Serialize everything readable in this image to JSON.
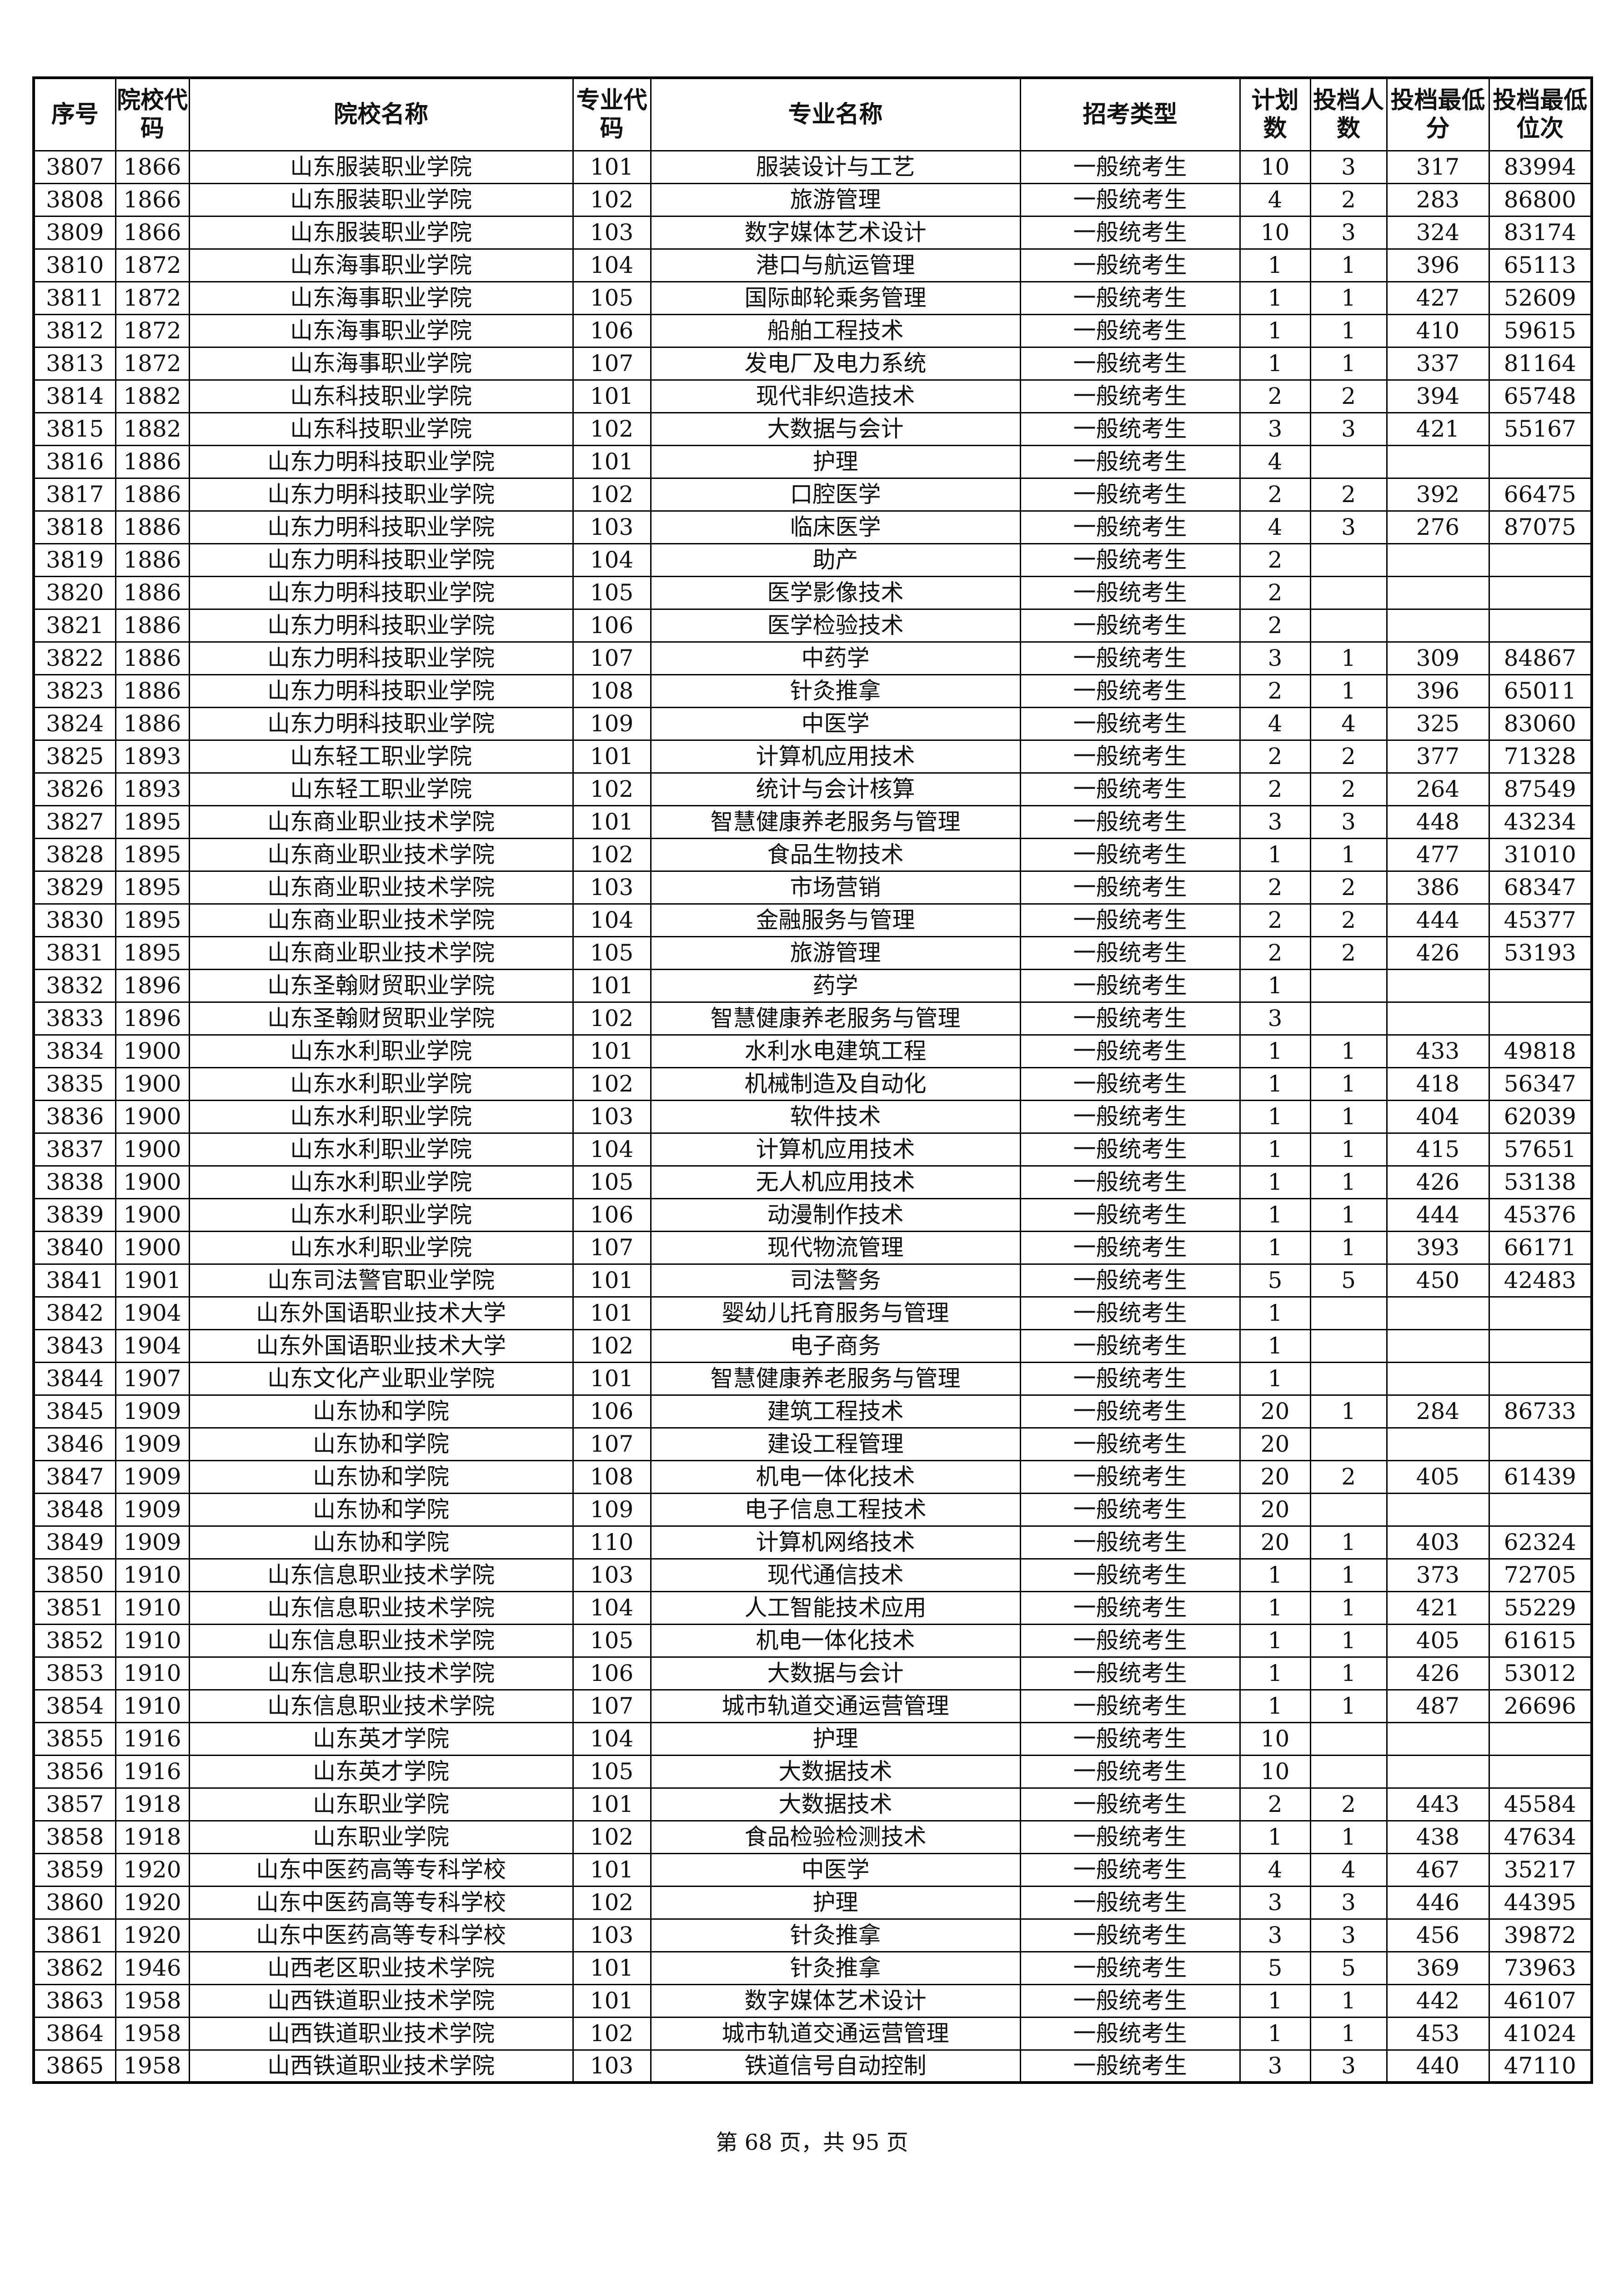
{
  "headers": [
    "序号",
    "院校代码",
    "院校名称",
    "专业代码",
    "专业名称",
    "招考类型",
    "计划数",
    "投档人数",
    "投档最低分",
    "投档最低位次"
  ],
  "rows": [
    [
      "3807",
      "1866",
      "山东服装职业学院",
      "101",
      "服装设计与工艺",
      "一般统考生",
      "10",
      "3",
      "317",
      "83994"
    ],
    [
      "3808",
      "1866",
      "山东服装职业学院",
      "102",
      "旅游管理",
      "一般统考生",
      "4",
      "2",
      "283",
      "86800"
    ],
    [
      "3809",
      "1866",
      "山东服装职业学院",
      "103",
      "数字媒体艺术设计",
      "一般统考生",
      "10",
      "3",
      "324",
      "83174"
    ],
    [
      "3810",
      "1872",
      "山东海事职业学院",
      "104",
      "港口与航运管理",
      "一般统考生",
      "1",
      "1",
      "396",
      "65113"
    ],
    [
      "3811",
      "1872",
      "山东海事职业学院",
      "105",
      "国际邮轮乘务管理",
      "一般统考生",
      "1",
      "1",
      "427",
      "52609"
    ],
    [
      "3812",
      "1872",
      "山东海事职业学院",
      "106",
      "船舶工程技术",
      "一般统考生",
      "1",
      "1",
      "410",
      "59615"
    ],
    [
      "3813",
      "1872",
      "山东海事职业学院",
      "107",
      "发电厂及电力系统",
      "一般统考生",
      "1",
      "1",
      "337",
      "81164"
    ],
    [
      "3814",
      "1882",
      "山东科技职业学院",
      "101",
      "现代非织造技术",
      "一般统考生",
      "2",
      "2",
      "394",
      "65748"
    ],
    [
      "3815",
      "1882",
      "山东科技职业学院",
      "102",
      "大数据与会计",
      "一般统考生",
      "3",
      "3",
      "421",
      "55167"
    ],
    [
      "3816",
      "1886",
      "山东力明科技职业学院",
      "101",
      "护理",
      "一般统考生",
      "4",
      "",
      "",
      ""
    ],
    [
      "3817",
      "1886",
      "山东力明科技职业学院",
      "102",
      "口腔医学",
      "一般统考生",
      "2",
      "2",
      "392",
      "66475"
    ],
    [
      "3818",
      "1886",
      "山东力明科技职业学院",
      "103",
      "临床医学",
      "一般统考生",
      "4",
      "3",
      "276",
      "87075"
    ],
    [
      "3819",
      "1886",
      "山东力明科技职业学院",
      "104",
      "助产",
      "一般统考生",
      "2",
      "",
      "",
      ""
    ],
    [
      "3820",
      "1886",
      "山东力明科技职业学院",
      "105",
      "医学影像技术",
      "一般统考生",
      "2",
      "",
      "",
      ""
    ],
    [
      "3821",
      "1886",
      "山东力明科技职业学院",
      "106",
      "医学检验技术",
      "一般统考生",
      "2",
      "",
      "",
      ""
    ],
    [
      "3822",
      "1886",
      "山东力明科技职业学院",
      "107",
      "中药学",
      "一般统考生",
      "3",
      "1",
      "309",
      "84867"
    ],
    [
      "3823",
      "1886",
      "山东力明科技职业学院",
      "108",
      "针灸推拿",
      "一般统考生",
      "2",
      "1",
      "396",
      "65011"
    ],
    [
      "3824",
      "1886",
      "山东力明科技职业学院",
      "109",
      "中医学",
      "一般统考生",
      "4",
      "4",
      "325",
      "83060"
    ],
    [
      "3825",
      "1893",
      "山东轻工职业学院",
      "101",
      "计算机应用技术",
      "一般统考生",
      "2",
      "2",
      "377",
      "71328"
    ],
    [
      "3826",
      "1893",
      "山东轻工职业学院",
      "102",
      "统计与会计核算",
      "一般统考生",
      "2",
      "2",
      "264",
      "87549"
    ],
    [
      "3827",
      "1895",
      "山东商业职业技术学院",
      "101",
      "智慧健康养老服务与管理",
      "一般统考生",
      "3",
      "3",
      "448",
      "43234"
    ],
    [
      "3828",
      "1895",
      "山东商业职业技术学院",
      "102",
      "食品生物技术",
      "一般统考生",
      "1",
      "1",
      "477",
      "31010"
    ],
    [
      "3829",
      "1895",
      "山东商业职业技术学院",
      "103",
      "市场营销",
      "一般统考生",
      "2",
      "2",
      "386",
      "68347"
    ],
    [
      "3830",
      "1895",
      "山东商业职业技术学院",
      "104",
      "金融服务与管理",
      "一般统考生",
      "2",
      "2",
      "444",
      "45377"
    ],
    [
      "3831",
      "1895",
      "山东商业职业技术学院",
      "105",
      "旅游管理",
      "一般统考生",
      "2",
      "2",
      "426",
      "53193"
    ],
    [
      "3832",
      "1896",
      "山东圣翰财贸职业学院",
      "101",
      "药学",
      "一般统考生",
      "1",
      "",
      "",
      ""
    ],
    [
      "3833",
      "1896",
      "山东圣翰财贸职业学院",
      "102",
      "智慧健康养老服务与管理",
      "一般统考生",
      "3",
      "",
      "",
      ""
    ],
    [
      "3834",
      "1900",
      "山东水利职业学院",
      "101",
      "水利水电建筑工程",
      "一般统考生",
      "1",
      "1",
      "433",
      "49818"
    ],
    [
      "3835",
      "1900",
      "山东水利职业学院",
      "102",
      "机械制造及自动化",
      "一般统考生",
      "1",
      "1",
      "418",
      "56347"
    ],
    [
      "3836",
      "1900",
      "山东水利职业学院",
      "103",
      "软件技术",
      "一般统考生",
      "1",
      "1",
      "404",
      "62039"
    ],
    [
      "3837",
      "1900",
      "山东水利职业学院",
      "104",
      "计算机应用技术",
      "一般统考生",
      "1",
      "1",
      "415",
      "57651"
    ],
    [
      "3838",
      "1900",
      "山东水利职业学院",
      "105",
      "无人机应用技术",
      "一般统考生",
      "1",
      "1",
      "426",
      "53138"
    ],
    [
      "3839",
      "1900",
      "山东水利职业学院",
      "106",
      "动漫制作技术",
      "一般统考生",
      "1",
      "1",
      "444",
      "45376"
    ],
    [
      "3840",
      "1900",
      "山东水利职业学院",
      "107",
      "现代物流管理",
      "一般统考生",
      "1",
      "1",
      "393",
      "66171"
    ],
    [
      "3841",
      "1901",
      "山东司法警官职业学院",
      "101",
      "司法警务",
      "一般统考生",
      "5",
      "5",
      "450",
      "42483"
    ],
    [
      "3842",
      "1904",
      "山东外国语职业技术大学",
      "101",
      "婴幼儿托育服务与管理",
      "一般统考生",
      "1",
      "",
      "",
      ""
    ],
    [
      "3843",
      "1904",
      "山东外国语职业技术大学",
      "102",
      "电子商务",
      "一般统考生",
      "1",
      "",
      "",
      ""
    ],
    [
      "3844",
      "1907",
      "山东文化产业职业学院",
      "101",
      "智慧健康养老服务与管理",
      "一般统考生",
      "1",
      "",
      "",
      ""
    ],
    [
      "3845",
      "1909",
      "山东协和学院",
      "106",
      "建筑工程技术",
      "一般统考生",
      "20",
      "1",
      "284",
      "86733"
    ],
    [
      "3846",
      "1909",
      "山东协和学院",
      "107",
      "建设工程管理",
      "一般统考生",
      "20",
      "",
      "",
      ""
    ],
    [
      "3847",
      "1909",
      "山东协和学院",
      "108",
      "机电一体化技术",
      "一般统考生",
      "20",
      "2",
      "405",
      "61439"
    ],
    [
      "3848",
      "1909",
      "山东协和学院",
      "109",
      "电子信息工程技术",
      "一般统考生",
      "20",
      "",
      "",
      ""
    ],
    [
      "3849",
      "1909",
      "山东协和学院",
      "110",
      "计算机网络技术",
      "一般统考生",
      "20",
      "1",
      "403",
      "62324"
    ],
    [
      "3850",
      "1910",
      "山东信息职业技术学院",
      "103",
      "现代通信技术",
      "一般统考生",
      "1",
      "1",
      "373",
      "72705"
    ],
    [
      "3851",
      "1910",
      "山东信息职业技术学院",
      "104",
      "人工智能技术应用",
      "一般统考生",
      "1",
      "1",
      "421",
      "55229"
    ],
    [
      "3852",
      "1910",
      "山东信息职业技术学院",
      "105",
      "机电一体化技术",
      "一般统考生",
      "1",
      "1",
      "405",
      "61615"
    ],
    [
      "3853",
      "1910",
      "山东信息职业技术学院",
      "106",
      "大数据与会计",
      "一般统考生",
      "1",
      "1",
      "426",
      "53012"
    ],
    [
      "3854",
      "1910",
      "山东信息职业技术学院",
      "107",
      "城市轨道交通运营管理",
      "一般统考生",
      "1",
      "1",
      "487",
      "26696"
    ],
    [
      "3855",
      "1916",
      "山东英才学院",
      "104",
      "护理",
      "一般统考生",
      "10",
      "",
      "",
      ""
    ],
    [
      "3856",
      "1916",
      "山东英才学院",
      "105",
      "大数据技术",
      "一般统考生",
      "10",
      "",
      "",
      ""
    ],
    [
      "3857",
      "1918",
      "山东职业学院",
      "101",
      "大数据技术",
      "一般统考生",
      "2",
      "2",
      "443",
      "45584"
    ],
    [
      "3858",
      "1918",
      "山东职业学院",
      "102",
      "食品检验检测技术",
      "一般统考生",
      "1",
      "1",
      "438",
      "47634"
    ],
    [
      "3859",
      "1920",
      "山东中医药高等专科学校",
      "101",
      "中医学",
      "一般统考生",
      "4",
      "4",
      "467",
      "35217"
    ],
    [
      "3860",
      "1920",
      "山东中医药高等专科学校",
      "102",
      "护理",
      "一般统考生",
      "3",
      "3",
      "446",
      "44395"
    ],
    [
      "3861",
      "1920",
      "山东中医药高等专科学校",
      "103",
      "针灸推拿",
      "一般统考生",
      "3",
      "3",
      "456",
      "39872"
    ],
    [
      "3862",
      "1946",
      "山西老区职业技术学院",
      "101",
      "针灸推拿",
      "一般统考生",
      "5",
      "5",
      "369",
      "73963"
    ],
    [
      "3863",
      "1958",
      "山西铁道职业技术学院",
      "101",
      "数字媒体艺术设计",
      "一般统考生",
      "1",
      "1",
      "442",
      "46107"
    ],
    [
      "3864",
      "1958",
      "山西铁道职业技术学院",
      "102",
      "城市轨道交通运营管理",
      "一般统考生",
      "1",
      "1",
      "453",
      "41024"
    ],
    [
      "3865",
      "1958",
      "山西铁道职业技术学院",
      "103",
      "铁道信号自动控制",
      "一般统考生",
      "3",
      "3",
      "440",
      "47110"
    ]
  ],
  "footer": "第 68 页，共 95 页"
}
